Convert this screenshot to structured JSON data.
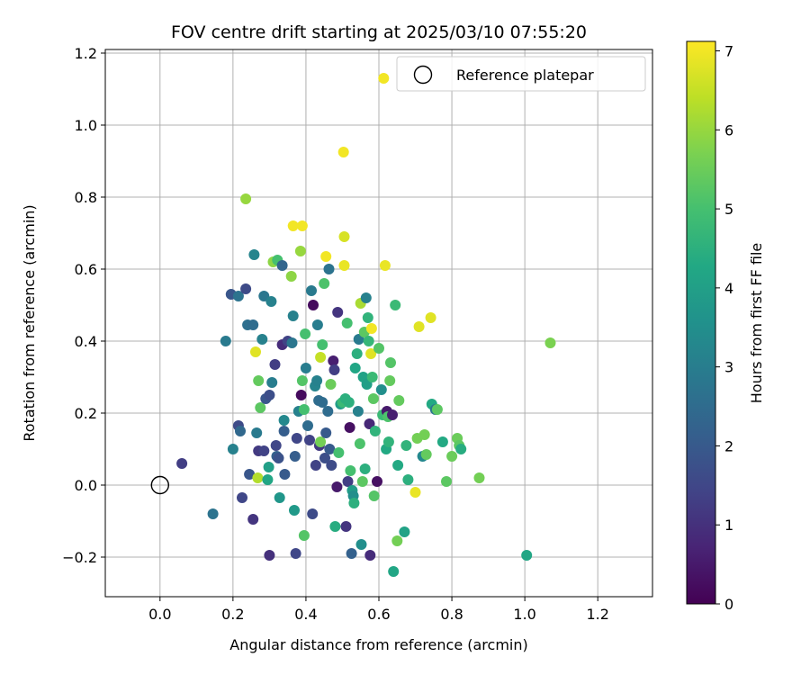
{
  "chart_data": {
    "type": "scatter",
    "title": "FOV centre drift starting at 2025/03/10 07:55:20",
    "xlabel": "Angular distance from reference (arcmin)",
    "ylabel": "Rotation from reference (arcmin)",
    "xlim": [
      -0.15,
      1.35
    ],
    "ylim": [
      -0.31,
      1.21
    ],
    "xticks": [
      0.0,
      0.2,
      0.4,
      0.6,
      0.8,
      1.0,
      1.2
    ],
    "xtick_labels": [
      "0.0",
      "0.2",
      "0.4",
      "0.6",
      "0.8",
      "1.0",
      "1.2"
    ],
    "yticks": [
      -0.2,
      0.0,
      0.2,
      0.4,
      0.6,
      0.8,
      1.0,
      1.2
    ],
    "ytick_labels": [
      "−0.2",
      "0.0",
      "0.2",
      "0.4",
      "0.6",
      "0.8",
      "1.0",
      "1.2"
    ],
    "grid": true,
    "legend": {
      "placement": "top-right",
      "entries": [
        {
          "label": "Reference platepar",
          "marker": "open-circle"
        }
      ]
    },
    "reference_point": {
      "x": 0.0,
      "y": 0.0
    },
    "colorbar": {
      "label": "Hours from first FF file",
      "colormap": "viridis",
      "range": [
        0,
        7.12
      ],
      "ticks": [
        0,
        1,
        2,
        3,
        4,
        5,
        6,
        7
      ],
      "tick_labels": [
        "0",
        "1",
        "2",
        "3",
        "4",
        "5",
        "6",
        "7"
      ]
    },
    "points": [
      {
        "x": 0.06,
        "y": 0.06,
        "c": 1.3
      },
      {
        "x": 0.145,
        "y": -0.08,
        "c": 2.7
      },
      {
        "x": 0.18,
        "y": 0.4,
        "c": 2.9
      },
      {
        "x": 0.195,
        "y": 0.53,
        "c": 1.9
      },
      {
        "x": 0.2,
        "y": 0.1,
        "c": 3.1
      },
      {
        "x": 0.215,
        "y": 0.165,
        "c": 1.6
      },
      {
        "x": 0.22,
        "y": 0.15,
        "c": 2.4
      },
      {
        "x": 0.215,
        "y": 0.525,
        "c": 2.7
      },
      {
        "x": 0.225,
        "y": -0.035,
        "c": 1.5
      },
      {
        "x": 0.235,
        "y": 0.545,
        "c": 1.6
      },
      {
        "x": 0.235,
        "y": 0.795,
        "c": 6.0
      },
      {
        "x": 0.24,
        "y": 0.445,
        "c": 2.6
      },
      {
        "x": 0.245,
        "y": 0.03,
        "c": 1.9
      },
      {
        "x": 0.255,
        "y": 0.445,
        "c": 2.5
      },
      {
        "x": 0.255,
        "y": -0.095,
        "c": 1.1
      },
      {
        "x": 0.258,
        "y": 0.64,
        "c": 3.2
      },
      {
        "x": 0.262,
        "y": 0.37,
        "c": 6.8
      },
      {
        "x": 0.265,
        "y": 0.145,
        "c": 2.9
      },
      {
        "x": 0.268,
        "y": 0.02,
        "c": 6.3
      },
      {
        "x": 0.27,
        "y": 0.095,
        "c": 1.2
      },
      {
        "x": 0.27,
        "y": 0.29,
        "c": 5.4
      },
      {
        "x": 0.275,
        "y": 0.215,
        "c": 5.3
      },
      {
        "x": 0.28,
        "y": 0.405,
        "c": 3.1
      },
      {
        "x": 0.285,
        "y": 0.095,
        "c": 1.4
      },
      {
        "x": 0.285,
        "y": 0.525,
        "c": 2.8
      },
      {
        "x": 0.29,
        "y": 0.24,
        "c": 1.9
      },
      {
        "x": 0.295,
        "y": 0.015,
        "c": 4.2
      },
      {
        "x": 0.298,
        "y": 0.05,
        "c": 4.0
      },
      {
        "x": 0.3,
        "y": -0.195,
        "c": 1.0
      },
      {
        "x": 0.3,
        "y": 0.25,
        "c": 1.7
      },
      {
        "x": 0.305,
        "y": 0.51,
        "c": 3.1
      },
      {
        "x": 0.307,
        "y": 0.285,
        "c": 3.0
      },
      {
        "x": 0.31,
        "y": 0.62,
        "c": 5.9
      },
      {
        "x": 0.315,
        "y": 0.335,
        "c": 1.3
      },
      {
        "x": 0.318,
        "y": 0.11,
        "c": 1.5
      },
      {
        "x": 0.32,
        "y": 0.08,
        "c": 2.2
      },
      {
        "x": 0.322,
        "y": 0.625,
        "c": 5.0
      },
      {
        "x": 0.325,
        "y": 0.075,
        "c": 1.8
      },
      {
        "x": 0.328,
        "y": -0.035,
        "c": 3.7
      },
      {
        "x": 0.335,
        "y": 0.61,
        "c": 2.3
      },
      {
        "x": 0.335,
        "y": 0.39,
        "c": 0.9
      },
      {
        "x": 0.34,
        "y": 0.18,
        "c": 3.3
      },
      {
        "x": 0.34,
        "y": 0.15,
        "c": 2.1
      },
      {
        "x": 0.342,
        "y": 0.03,
        "c": 2.0
      },
      {
        "x": 0.35,
        "y": 0.4,
        "c": 1.4
      },
      {
        "x": 0.36,
        "y": 0.58,
        "c": 5.9
      },
      {
        "x": 0.362,
        "y": 0.395,
        "c": 2.8
      },
      {
        "x": 0.365,
        "y": 0.72,
        "c": 7.0
      },
      {
        "x": 0.365,
        "y": 0.47,
        "c": 3.1
      },
      {
        "x": 0.368,
        "y": -0.07,
        "c": 3.8
      },
      {
        "x": 0.37,
        "y": 0.08,
        "c": 2.1
      },
      {
        "x": 0.372,
        "y": -0.19,
        "c": 1.5
      },
      {
        "x": 0.375,
        "y": 0.13,
        "c": 1.5
      },
      {
        "x": 0.38,
        "y": 0.205,
        "c": 3.1
      },
      {
        "x": 0.385,
        "y": 0.65,
        "c": 6.0
      },
      {
        "x": 0.387,
        "y": 0.25,
        "c": 0.2
      },
      {
        "x": 0.39,
        "y": 0.72,
        "c": 7.0
      },
      {
        "x": 0.39,
        "y": 0.29,
        "c": 5.2
      },
      {
        "x": 0.395,
        "y": -0.14,
        "c": 5.2
      },
      {
        "x": 0.395,
        "y": 0.21,
        "c": 5.0
      },
      {
        "x": 0.398,
        "y": 0.42,
        "c": 5.0
      },
      {
        "x": 0.4,
        "y": 0.325,
        "c": 3.0
      },
      {
        "x": 0.405,
        "y": 0.165,
        "c": 2.5
      },
      {
        "x": 0.41,
        "y": 0.125,
        "c": 1.4
      },
      {
        "x": 0.415,
        "y": 0.54,
        "c": 2.9
      },
      {
        "x": 0.418,
        "y": -0.08,
        "c": 1.6
      },
      {
        "x": 0.42,
        "y": 0.5,
        "c": 0.2
      },
      {
        "x": 0.425,
        "y": 0.275,
        "c": 3.2
      },
      {
        "x": 0.427,
        "y": 0.055,
        "c": 1.4
      },
      {
        "x": 0.43,
        "y": 0.29,
        "c": 3.1
      },
      {
        "x": 0.432,
        "y": 0.445,
        "c": 3.0
      },
      {
        "x": 0.435,
        "y": 0.235,
        "c": 2.5
      },
      {
        "x": 0.437,
        "y": 0.11,
        "c": 1.2
      },
      {
        "x": 0.44,
        "y": 0.355,
        "c": 6.5
      },
      {
        "x": 0.44,
        "y": 0.12,
        "c": 5.6
      },
      {
        "x": 0.445,
        "y": 0.23,
        "c": 2.5
      },
      {
        "x": 0.445,
        "y": 0.39,
        "c": 5.0
      },
      {
        "x": 0.45,
        "y": 0.56,
        "c": 5.1
      },
      {
        "x": 0.452,
        "y": 0.075,
        "c": 1.7
      },
      {
        "x": 0.455,
        "y": 0.635,
        "c": 7.0
      },
      {
        "x": 0.455,
        "y": 0.145,
        "c": 2.0
      },
      {
        "x": 0.46,
        "y": 0.205,
        "c": 2.5
      },
      {
        "x": 0.463,
        "y": 0.6,
        "c": 2.7
      },
      {
        "x": 0.465,
        "y": 0.1,
        "c": 2.0
      },
      {
        "x": 0.468,
        "y": 0.28,
        "c": 5.5
      },
      {
        "x": 0.47,
        "y": 0.055,
        "c": 1.6
      },
      {
        "x": 0.475,
        "y": 0.345,
        "c": 0.6
      },
      {
        "x": 0.478,
        "y": 0.32,
        "c": 1.3
      },
      {
        "x": 0.48,
        "y": -0.115,
        "c": 4.4
      },
      {
        "x": 0.485,
        "y": -0.005,
        "c": 0.5
      },
      {
        "x": 0.487,
        "y": 0.48,
        "c": 1.1
      },
      {
        "x": 0.49,
        "y": 0.09,
        "c": 5.0
      },
      {
        "x": 0.495,
        "y": 0.225,
        "c": 3.9
      },
      {
        "x": 0.5,
        "y": 0.23,
        "c": 4.8
      },
      {
        "x": 0.503,
        "y": 0.925,
        "c": 7.0
      },
      {
        "x": 0.505,
        "y": 0.69,
        "c": 6.7
      },
      {
        "x": 0.505,
        "y": 0.61,
        "c": 6.9
      },
      {
        "x": 0.508,
        "y": 0.24,
        "c": 4.5
      },
      {
        "x": 0.51,
        "y": -0.115,
        "c": 1.1
      },
      {
        "x": 0.513,
        "y": 0.45,
        "c": 5.0
      },
      {
        "x": 0.515,
        "y": 0.01,
        "c": 1.3
      },
      {
        "x": 0.518,
        "y": 0.23,
        "c": 4.5
      },
      {
        "x": 0.52,
        "y": 0.16,
        "c": 0.3
      },
      {
        "x": 0.522,
        "y": 0.04,
        "c": 5.0
      },
      {
        "x": 0.525,
        "y": -0.19,
        "c": 2.2
      },
      {
        "x": 0.527,
        "y": -0.015,
        "c": 3.9
      },
      {
        "x": 0.53,
        "y": -0.03,
        "c": 3.5
      },
      {
        "x": 0.532,
        "y": -0.05,
        "c": 4.5
      },
      {
        "x": 0.535,
        "y": 0.325,
        "c": 4.2
      },
      {
        "x": 0.54,
        "y": 0.365,
        "c": 4.5
      },
      {
        "x": 0.543,
        "y": 0.205,
        "c": 3.1
      },
      {
        "x": 0.545,
        "y": 0.405,
        "c": 2.9
      },
      {
        "x": 0.548,
        "y": 0.115,
        "c": 5.1
      },
      {
        "x": 0.55,
        "y": 0.505,
        "c": 6.2
      },
      {
        "x": 0.552,
        "y": -0.165,
        "c": 3.5
      },
      {
        "x": 0.555,
        "y": 0.01,
        "c": 5.3
      },
      {
        "x": 0.557,
        "y": 0.3,
        "c": 4.1
      },
      {
        "x": 0.56,
        "y": 0.425,
        "c": 5.3
      },
      {
        "x": 0.562,
        "y": 0.045,
        "c": 4.5
      },
      {
        "x": 0.565,
        "y": 0.52,
        "c": 3.1
      },
      {
        "x": 0.567,
        "y": 0.28,
        "c": 4.0
      },
      {
        "x": 0.57,
        "y": 0.465,
        "c": 4.6
      },
      {
        "x": 0.572,
        "y": 0.4,
        "c": 4.7
      },
      {
        "x": 0.574,
        "y": 0.17,
        "c": 0.8
      },
      {
        "x": 0.576,
        "y": -0.195,
        "c": 0.9
      },
      {
        "x": 0.578,
        "y": 0.365,
        "c": 6.8
      },
      {
        "x": 0.58,
        "y": 0.435,
        "c": 7.0
      },
      {
        "x": 0.582,
        "y": 0.3,
        "c": 4.8
      },
      {
        "x": 0.585,
        "y": 0.24,
        "c": 5.3
      },
      {
        "x": 0.587,
        "y": -0.03,
        "c": 5.2
      },
      {
        "x": 0.59,
        "y": 0.15,
        "c": 4.6
      },
      {
        "x": 0.595,
        "y": 0.01,
        "c": 0.3
      },
      {
        "x": 0.6,
        "y": 0.38,
        "c": 5.2
      },
      {
        "x": 0.607,
        "y": 0.265,
        "c": 3.5
      },
      {
        "x": 0.61,
        "y": 0.195,
        "c": 4.8
      },
      {
        "x": 0.613,
        "y": 1.13,
        "c": 7.0
      },
      {
        "x": 0.617,
        "y": 0.61,
        "c": 6.9
      },
      {
        "x": 0.62,
        "y": 0.1,
        "c": 4.3
      },
      {
        "x": 0.622,
        "y": 0.205,
        "c": 0.5
      },
      {
        "x": 0.625,
        "y": 0.19,
        "c": 5.1
      },
      {
        "x": 0.627,
        "y": 0.12,
        "c": 4.6
      },
      {
        "x": 0.63,
        "y": 0.29,
        "c": 5.4
      },
      {
        "x": 0.632,
        "y": 0.34,
        "c": 5.2
      },
      {
        "x": 0.637,
        "y": 0.195,
        "c": 0.6
      },
      {
        "x": 0.64,
        "y": -0.24,
        "c": 4.2
      },
      {
        "x": 0.645,
        "y": 0.5,
        "c": 4.8
      },
      {
        "x": 0.65,
        "y": -0.155,
        "c": 5.6
      },
      {
        "x": 0.652,
        "y": 0.055,
        "c": 4.3
      },
      {
        "x": 0.655,
        "y": 0.235,
        "c": 5.4
      },
      {
        "x": 0.67,
        "y": -0.13,
        "c": 4.1
      },
      {
        "x": 0.675,
        "y": 0.11,
        "c": 4.6
      },
      {
        "x": 0.68,
        "y": 0.015,
        "c": 4.5
      },
      {
        "x": 0.7,
        "y": -0.02,
        "c": 6.9
      },
      {
        "x": 0.705,
        "y": 0.13,
        "c": 5.6
      },
      {
        "x": 0.71,
        "y": 0.44,
        "c": 6.8
      },
      {
        "x": 0.72,
        "y": 0.08,
        "c": 3.3
      },
      {
        "x": 0.725,
        "y": 0.14,
        "c": 5.6
      },
      {
        "x": 0.73,
        "y": 0.085,
        "c": 5.4
      },
      {
        "x": 0.742,
        "y": 0.465,
        "c": 6.8
      },
      {
        "x": 0.745,
        "y": 0.225,
        "c": 4.3
      },
      {
        "x": 0.755,
        "y": 0.21,
        "c": 2.8
      },
      {
        "x": 0.76,
        "y": 0.21,
        "c": 5.3
      },
      {
        "x": 0.775,
        "y": 0.12,
        "c": 4.3
      },
      {
        "x": 0.785,
        "y": 0.01,
        "c": 5.3
      },
      {
        "x": 0.8,
        "y": 0.08,
        "c": 5.5
      },
      {
        "x": 0.815,
        "y": 0.13,
        "c": 5.5
      },
      {
        "x": 0.82,
        "y": 0.11,
        "c": 5.3
      },
      {
        "x": 0.825,
        "y": 0.1,
        "c": 4.4
      },
      {
        "x": 0.875,
        "y": 0.02,
        "c": 5.6
      },
      {
        "x": 1.005,
        "y": -0.195,
        "c": 4.2
      },
      {
        "x": 1.07,
        "y": 0.395,
        "c": 5.7
      }
    ]
  }
}
